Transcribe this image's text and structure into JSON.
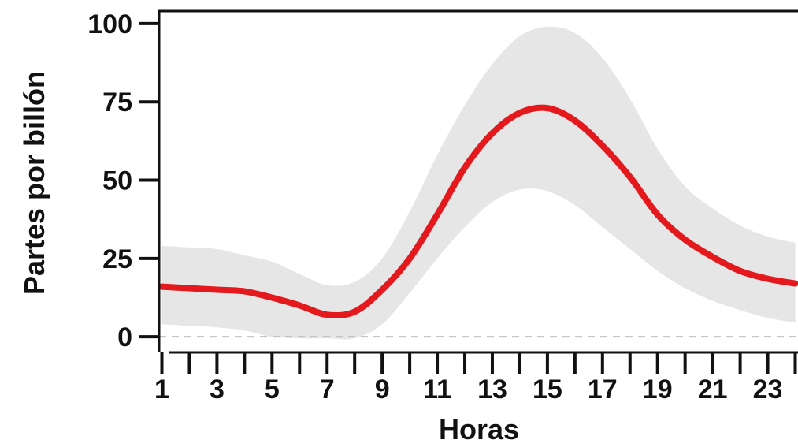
{
  "chart_data": {
    "type": "line",
    "xlabel": "Horas",
    "ylabel": "Partes por billón",
    "xlim": [
      0.9,
      24.1
    ],
    "ylim": [
      -5,
      104
    ],
    "x_ticks_major": [
      1,
      3,
      5,
      7,
      9,
      11,
      13,
      15,
      17,
      19,
      21,
      23
    ],
    "x_ticks_minor": [
      2,
      4,
      6,
      8,
      10,
      12,
      14,
      16,
      18,
      20,
      22,
      24
    ],
    "y_ticks": [
      0,
      25,
      50,
      75,
      100
    ],
    "reference_line": {
      "y": 0,
      "style": "dashed",
      "color": "#bdbdbd"
    },
    "x": [
      1,
      2,
      3,
      4,
      5,
      6,
      7,
      8,
      9,
      10,
      11,
      12,
      13,
      14,
      15,
      16,
      17,
      18,
      19,
      20,
      21,
      22,
      23,
      24
    ],
    "series": [
      {
        "values": [
          16,
          15.5,
          15,
          14.5,
          12.5,
          10,
          7,
          8,
          15,
          25,
          39,
          54,
          65,
          71.5,
          73,
          69,
          61,
          51,
          39,
          31,
          25.5,
          21,
          18.5,
          17
        ],
        "lower": [
          4,
          3.5,
          3,
          2,
          0,
          -0.5,
          -0.5,
          -0.5,
          4,
          14,
          25,
          35,
          43,
          47,
          46.5,
          42,
          35,
          28,
          21,
          15.5,
          11.5,
          8.5,
          6,
          4.5
        ],
        "upper": [
          29,
          28.5,
          28,
          26,
          24,
          20,
          16.5,
          17.5,
          25,
          40,
          58,
          74,
          87,
          96,
          99,
          97,
          89,
          76,
          60,
          48,
          41,
          35.5,
          32,
          30
        ],
        "line_color": "#e3191d",
        "band_color": "#e6e6e6"
      }
    ],
    "grid": false,
    "legend": "none"
  }
}
